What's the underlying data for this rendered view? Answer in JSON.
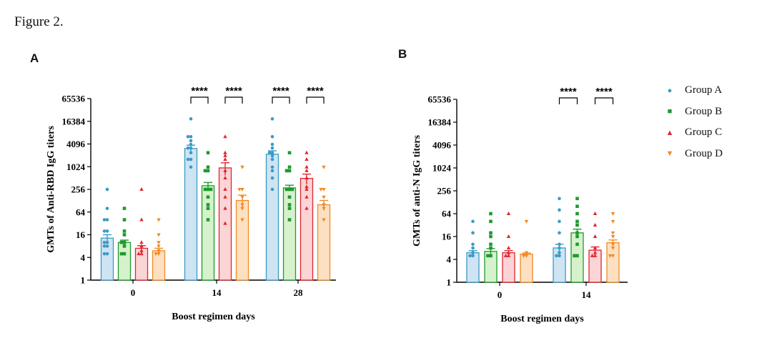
{
  "figure_title": "Figure 2.",
  "panels": {
    "a": {
      "letter": "A"
    },
    "b": {
      "letter": "B"
    }
  },
  "colors": {
    "Group A": "#3a9bc5",
    "Group B": "#1f9a2e",
    "Group C": "#e0262f",
    "Group D": "#f08a24"
  },
  "fills": {
    "Group A": "#cfe4f3",
    "Group B": "#d6f2cc",
    "Group C": "#fbd4d6",
    "Group D": "#fde0c2"
  },
  "legend": [
    {
      "label": "Group A",
      "marker": "●"
    },
    {
      "label": "Group B",
      "marker": "■"
    },
    {
      "label": "Group C",
      "marker": "▲"
    },
    {
      "label": "Group D",
      "marker": "▼"
    }
  ],
  "chart_data": [
    {
      "type": "bar",
      "title": "A",
      "xlabel": "Boost regimen days",
      "ylabel": "GMTs of Anti-RBD IgG titers",
      "yscale": "log2",
      "ylim": [
        1,
        65536
      ],
      "yticks": [
        "1",
        "4",
        "16",
        "64",
        "256",
        "1024",
        "4096",
        "16384",
        "65536"
      ],
      "categories": [
        "0",
        "14",
        "28"
      ],
      "series": [
        {
          "name": "Group A",
          "values": [
            13,
            3100,
            2200
          ],
          "errors": [
            3,
            700,
            500
          ],
          "points": [
            [
              5,
              5,
              8,
              8,
              10,
              10,
              20,
              20,
              40,
              40,
              80,
              256
            ],
            [
              1000,
              1600,
              1600,
              2400,
              3200,
              3200,
              4000,
              5000,
              6400,
              6400,
              19000
            ],
            [
              256,
              512,
              800,
              1000,
              1600,
              2000,
              2400,
              2400,
              3200,
              4000,
              6400,
              19000
            ]
          ]
        },
        {
          "name": "Group B",
          "values": [
            10,
            320,
            280
          ],
          "errors": [
            1.5,
            70,
            50
          ],
          "points": [
            [
              5,
              5,
              8,
              10,
              10,
              16,
              20,
              40,
              80
            ],
            [
              40,
              80,
              100,
              160,
              256,
              256,
              256,
              800,
              800,
              1000,
              2400
            ],
            [
              40,
              80,
              100,
              160,
              256,
              256,
              256,
              800,
              800,
              1000,
              2400
            ]
          ]
        },
        {
          "name": "Group C",
          "values": [
            7,
            950,
            500
          ],
          "errors": [
            1.2,
            350,
            150
          ],
          "points": [
            [
              5,
              5,
              6,
              8,
              10,
              40,
              256
            ],
            [
              32,
              80,
              160,
              256,
              512,
              800,
              1600,
              2000,
              2400,
              6400
            ],
            [
              80,
              160,
              256,
              300,
              512,
              800,
              1000,
              1600,
              2400
            ]
          ]
        },
        {
          "name": "Group D",
          "values": [
            6,
            130,
            100
          ],
          "errors": [
            1,
            50,
            30
          ],
          "points": [
            [
              5,
              5,
              6,
              8,
              10,
              16,
              40
            ],
            [
              40,
              80,
              100,
              160,
              256,
              256,
              1000
            ],
            [
              40,
              80,
              100,
              160,
              256,
              256,
              1000
            ]
          ]
        }
      ],
      "significance": [
        {
          "category": "14",
          "pair": [
            0,
            1
          ],
          "label": "****"
        },
        {
          "category": "14",
          "pair": [
            2,
            3
          ],
          "label": "****"
        },
        {
          "category": "28",
          "pair": [
            0,
            1
          ],
          "label": "****"
        },
        {
          "category": "28",
          "pair": [
            2,
            3
          ],
          "label": "****"
        }
      ]
    },
    {
      "type": "bar",
      "title": "B",
      "xlabel": "Boost regimen days",
      "ylabel": "GMTs of anti-N IgG titers",
      "yscale": "log2",
      "ylim": [
        1,
        65536
      ],
      "yticks": [
        "1",
        "4",
        "16",
        "64",
        "256",
        "1024",
        "4096",
        "16384",
        "65536"
      ],
      "categories": [
        "0",
        "14"
      ],
      "series": [
        {
          "name": "Group A",
          "values": [
            6,
            8
          ],
          "errors": [
            0.8,
            2
          ],
          "points": [
            [
              5,
              5,
              6,
              8,
              10,
              20,
              40
            ],
            [
              5,
              5,
              6,
              8,
              10,
              20,
              40,
              80,
              160
            ]
          ]
        },
        {
          "name": "Group B",
          "values": [
            6.5,
            20
          ],
          "errors": [
            1.2,
            5
          ],
          "points": [
            [
              5,
              5,
              8,
              10,
              16,
              20,
              40,
              64
            ],
            [
              5,
              5,
              10,
              16,
              20,
              32,
              40,
              64,
              100,
              160
            ]
          ]
        },
        {
          "name": "Group C",
          "values": [
            6,
            7
          ],
          "errors": [
            0.8,
            1.5
          ],
          "points": [
            [
              5,
              5,
              6,
              8,
              16,
              64
            ],
            [
              5,
              5,
              6,
              8,
              16,
              32,
              64
            ]
          ]
        },
        {
          "name": "Group D",
          "values": [
            5.5,
            11
          ],
          "errors": [
            0.4,
            2
          ],
          "points": [
            [
              5,
              5,
              6,
              40
            ],
            [
              5,
              5,
              8,
              10,
              16,
              20,
              40,
              64
            ]
          ]
        }
      ],
      "significance": [
        {
          "category": "14",
          "pair": [
            0,
            1
          ],
          "label": "****"
        },
        {
          "category": "14",
          "pair": [
            2,
            3
          ],
          "label": "****"
        }
      ]
    }
  ]
}
